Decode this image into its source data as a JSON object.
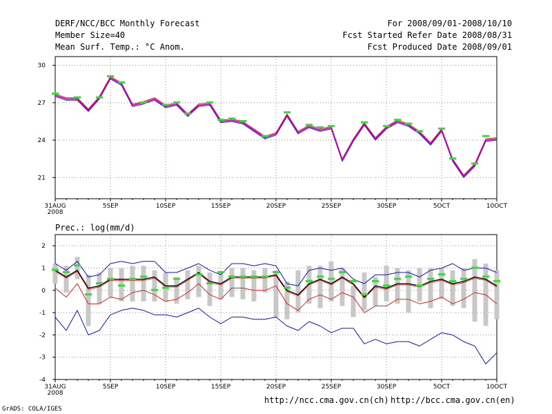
{
  "header": {
    "title": "DERF/NCC/BCC Monthly Forecast",
    "member_size": "Member Size=40",
    "variable": "Mean Surf. Temp.: °C Anom.",
    "period": "For 2008/09/01-2008/10/10",
    "started": "Fcst Started Refer Date 2008/08/31",
    "produced": "Fcst Produced Date 2008/09/01"
  },
  "prec_label": "Prec.: log(mm/d)",
  "footer": {
    "url_ncc": "http://ncc.cma.gov.cn(ch)",
    "url_bcc": "http://bcc.cma.gov.cn(en)",
    "grads": "GrADS: COLA/IGES"
  },
  "colors": {
    "mean": "#000000",
    "red": "#e02020",
    "blue": "#1010d0",
    "purple": "#c000c0",
    "green": "#30e030",
    "bar": "#c8c8c8",
    "grid": "#888888"
  },
  "chart_data": [
    {
      "type": "line",
      "title": "Mean Surf. Temp.: °C Anom.",
      "x": [
        0,
        1,
        2,
        3,
        4,
        5,
        6,
        7,
        8,
        9,
        10,
        11,
        12,
        13,
        14,
        15,
        16,
        17,
        18,
        19,
        20,
        21,
        22,
        23,
        24,
        25,
        26,
        27,
        28,
        29,
        30,
        31,
        32,
        33,
        34,
        35,
        36,
        37,
        38,
        39,
        40
      ],
      "x_tick_positions": [
        0,
        5,
        10,
        15,
        20,
        25,
        30,
        35,
        40
      ],
      "x_tick_labels": [
        "31AUG",
        "5SEP",
        "10SEP",
        "15SEP",
        "20SEP",
        "25SEP",
        "30SEP",
        "5OCT",
        "10OCT"
      ],
      "x_tick_sublabel": "2008",
      "ylim": [
        19.3,
        30.7
      ],
      "y_ticks": [
        21,
        24,
        27,
        30
      ],
      "series": [
        {
          "name": "mean",
          "values": [
            27.6,
            27.3,
            27.3,
            26.4,
            27.4,
            29.0,
            28.5,
            26.8,
            27.0,
            27.3,
            26.7,
            26.9,
            26.0,
            26.8,
            26.9,
            25.5,
            25.6,
            25.4,
            24.8,
            24.2,
            24.5,
            26.0,
            24.6,
            25.1,
            24.8,
            25.0,
            22.4,
            24.0,
            25.3,
            24.1,
            25.0,
            25.5,
            25.2,
            24.6,
            23.7,
            24.8,
            22.4,
            21.1,
            22.0,
            24.0,
            24.1
          ]
        },
        {
          "name": "upper",
          "values": [
            27.7,
            27.4,
            27.4,
            26.5,
            27.5,
            29.1,
            28.6,
            26.9,
            27.1,
            27.4,
            26.8,
            27.0,
            26.1,
            26.9,
            27.0,
            25.6,
            25.7,
            25.5,
            24.9,
            24.3,
            24.6,
            26.1,
            24.7,
            25.2,
            24.9,
            25.1,
            22.5,
            24.1,
            25.4,
            24.2,
            25.1,
            25.6,
            25.3,
            24.7,
            23.8,
            24.9,
            22.5,
            21.2,
            22.1,
            24.1,
            24.2
          ]
        },
        {
          "name": "lower",
          "values": [
            27.5,
            27.2,
            27.2,
            26.3,
            27.3,
            28.9,
            28.4,
            26.7,
            26.9,
            27.2,
            26.6,
            26.8,
            25.9,
            26.7,
            26.8,
            25.4,
            25.5,
            25.3,
            24.7,
            24.1,
            24.4,
            25.9,
            24.5,
            25.0,
            24.7,
            24.9,
            22.3,
            23.9,
            25.2,
            24.0,
            24.9,
            25.4,
            25.1,
            24.5,
            23.6,
            24.7,
            22.3,
            21.0,
            21.9,
            23.9,
            24.0
          ]
        },
        {
          "name": "observed",
          "values": [
            27.7,
            null,
            27.4,
            null,
            27.4,
            29.1,
            28.6,
            null,
            27.0,
            null,
            26.8,
            27.0,
            26.1,
            null,
            27.0,
            25.6,
            25.7,
            25.5,
            null,
            24.3,
            null,
            26.2,
            null,
            25.2,
            25.0,
            25.1,
            null,
            null,
            25.4,
            null,
            25.1,
            25.6,
            25.3,
            24.7,
            null,
            24.9,
            22.5,
            null,
            22.1,
            24.3,
            null
          ]
        }
      ]
    },
    {
      "type": "line",
      "title": "Prec.: log(mm/d)",
      "x": [
        0,
        1,
        2,
        3,
        4,
        5,
        6,
        7,
        8,
        9,
        10,
        11,
        12,
        13,
        14,
        15,
        16,
        17,
        18,
        19,
        20,
        21,
        22,
        23,
        24,
        25,
        26,
        27,
        28,
        29,
        30,
        31,
        32,
        33,
        34,
        35,
        36,
        37,
        38,
        39,
        40
      ],
      "x_tick_positions": [
        0,
        5,
        10,
        15,
        20,
        25,
        30,
        35,
        40
      ],
      "x_tick_labels": [
        "31AUG",
        "5SEP",
        "10SEP",
        "15SEP",
        "20SEP",
        "25SEP",
        "30SEP",
        "5OCT",
        "10OCT"
      ],
      "x_tick_sublabel": "2008",
      "ylim": [
        -4,
        2.5
      ],
      "y_ticks": [
        -4,
        -3,
        -2,
        -1,
        0,
        1,
        2
      ],
      "bars": {
        "low": [
          0.3,
          -0.1,
          0.5,
          -1.6,
          -0.6,
          -0.3,
          -0.5,
          -0.5,
          -0.5,
          -0.5,
          -0.5,
          -0.6,
          -0.4,
          -0.3,
          -0.7,
          -0.4,
          -0.3,
          -0.4,
          -0.5,
          -0.1,
          -1.2,
          -1.3,
          -1.0,
          -0.6,
          -0.8,
          -0.5,
          -0.7,
          -1.2,
          -0.9,
          -0.7,
          -0.5,
          -0.6,
          -1.0,
          -0.5,
          -0.8,
          -0.4,
          -0.7,
          -0.8,
          -1.4,
          -1.6,
          -1.3
        ],
        "high": [
          1.2,
          1.1,
          1.5,
          0.7,
          0.8,
          1.0,
          1.0,
          1.1,
          1.1,
          0.9,
          0.8,
          0.6,
          0.9,
          1.1,
          0.8,
          0.8,
          1.0,
          1.0,
          0.9,
          1.0,
          0.9,
          0.4,
          0.9,
          1.1,
          1.1,
          1.3,
          1.0,
          0.2,
          0.8,
          0.6,
          1.1,
          1.0,
          0.9,
          1.0,
          1.0,
          1.0,
          0.9,
          1.0,
          1.4,
          1.2,
          0.9
        ]
      },
      "series": [
        {
          "name": "mean",
          "values": [
            0.9,
            0.6,
            0.9,
            0.1,
            0.2,
            0.5,
            0.5,
            0.5,
            0.5,
            0.6,
            0.2,
            0.2,
            0.5,
            0.8,
            0.4,
            0.3,
            0.6,
            0.6,
            0.6,
            0.6,
            0.7,
            0.0,
            -0.2,
            0.3,
            0.5,
            0.3,
            0.6,
            0.3,
            -0.3,
            0.2,
            0.1,
            0.3,
            0.3,
            0.2,
            0.4,
            0.5,
            0.3,
            0.4,
            0.6,
            0.5,
            0.2
          ]
        },
        {
          "name": "mean_offset",
          "values": [
            0.85,
            0.55,
            0.85,
            0.05,
            0.15,
            0.45,
            0.45,
            0.45,
            0.45,
            0.55,
            0.15,
            0.15,
            0.45,
            0.75,
            0.35,
            0.25,
            0.55,
            0.55,
            0.55,
            0.55,
            0.65,
            -0.05,
            -0.25,
            0.25,
            0.45,
            0.25,
            0.55,
            0.25,
            -0.35,
            0.15,
            0.05,
            0.25,
            0.25,
            0.15,
            0.35,
            0.45,
            0.25,
            0.35,
            0.55,
            0.45,
            0.15
          ]
        },
        {
          "name": "upper_blue",
          "values": [
            1.2,
            0.9,
            1.3,
            0.6,
            0.7,
            1.2,
            1.3,
            1.2,
            1.3,
            1.3,
            0.8,
            0.8,
            1.0,
            1.2,
            0.9,
            0.7,
            1.2,
            1.2,
            1.1,
            1.2,
            1.1,
            0.3,
            0.2,
            0.9,
            1.0,
            0.9,
            1.0,
            0.5,
            0.3,
            0.7,
            0.7,
            0.8,
            0.8,
            0.6,
            0.9,
            1.0,
            1.2,
            0.9,
            1.0,
            1.0,
            0.8
          ]
        },
        {
          "name": "lower_red",
          "values": [
            0.1,
            -0.3,
            0.3,
            -0.6,
            -0.6,
            -0.3,
            -0.4,
            -0.1,
            0.0,
            -0.2,
            -0.5,
            -0.4,
            -0.1,
            0.3,
            -0.2,
            -0.4,
            0.1,
            0.1,
            0.0,
            0.0,
            0.2,
            -0.6,
            -0.9,
            -0.4,
            -0.2,
            -0.4,
            -0.1,
            -0.3,
            -1.0,
            -0.7,
            -0.7,
            -0.4,
            -0.4,
            -0.6,
            -0.5,
            -0.3,
            -0.6,
            -0.4,
            -0.1,
            -0.2,
            -0.6
          ]
        },
        {
          "name": "lower_blue",
          "values": [
            -1.2,
            -1.8,
            -0.9,
            -2.0,
            -1.8,
            -1.1,
            -0.9,
            -0.8,
            -0.9,
            -1.1,
            -1.1,
            -1.2,
            -1.0,
            -0.8,
            -1.2,
            -1.5,
            -1.2,
            -1.2,
            -1.3,
            -1.3,
            -1.2,
            -1.6,
            -1.8,
            -1.4,
            -1.6,
            -1.9,
            -1.7,
            -1.7,
            -2.4,
            -2.2,
            -2.4,
            -2.3,
            -2.3,
            -2.5,
            -2.2,
            -1.9,
            -2.0,
            -2.3,
            -2.5,
            -3.3,
            -2.8
          ]
        },
        {
          "name": "observed",
          "values": [
            0.9,
            0.8,
            1.1,
            -0.2,
            0.3,
            0.5,
            0.2,
            0.5,
            0.6,
            0.0,
            0.1,
            0.5,
            null,
            0.7,
            0.3,
            0.8,
            0.6,
            0.6,
            0.6,
            0.6,
            0.8,
            0.1,
            null,
            0.4,
            0.6,
            0.5,
            0.8,
            0.4,
            -0.2,
            0.4,
            0.2,
            0.5,
            0.6,
            0.2,
            0.5,
            0.7,
            0.4,
            0.5,
            1.0,
            0.6,
            0.4
          ]
        }
      ]
    }
  ]
}
